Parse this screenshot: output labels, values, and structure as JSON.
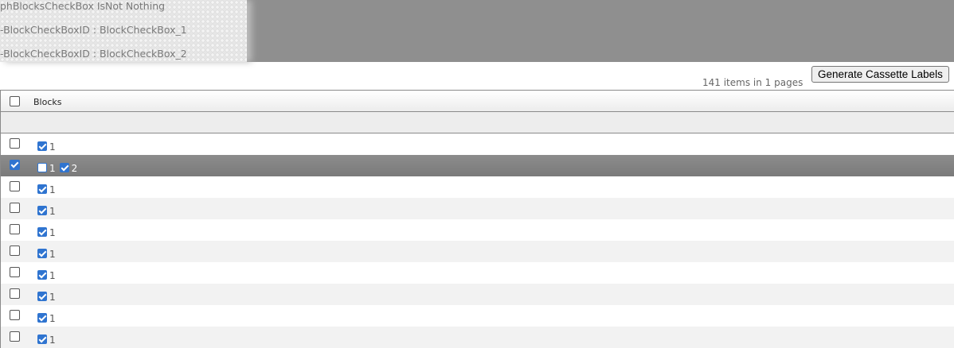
{
  "debug": {
    "lines": [
      "phBlocksCheckBox IsNot Nothing",
      "-BlockCheckBoxID : BlockCheckBox_1",
      "-BlockCheckBoxID : BlockCheckBox_2"
    ]
  },
  "toolbar": {
    "generate_label": "Generate Cassette Labels"
  },
  "pager": {
    "summary": "141 items in 1 pages"
  },
  "grid": {
    "header": {
      "blocks_label": "Blocks",
      "select_all": false
    },
    "rows": [
      {
        "selected": false,
        "blocks": [
          {
            "label": "1",
            "checked": true
          }
        ]
      },
      {
        "selected": true,
        "blocks": [
          {
            "label": "1",
            "checked": false
          },
          {
            "label": "2",
            "checked": true
          }
        ]
      },
      {
        "selected": false,
        "blocks": [
          {
            "label": "1",
            "checked": true
          }
        ]
      },
      {
        "selected": false,
        "blocks": [
          {
            "label": "1",
            "checked": true
          }
        ]
      },
      {
        "selected": false,
        "blocks": [
          {
            "label": "1",
            "checked": true
          }
        ]
      },
      {
        "selected": false,
        "blocks": [
          {
            "label": "1",
            "checked": true
          }
        ]
      },
      {
        "selected": false,
        "blocks": [
          {
            "label": "1",
            "checked": true
          }
        ]
      },
      {
        "selected": false,
        "blocks": [
          {
            "label": "1",
            "checked": true
          }
        ]
      },
      {
        "selected": false,
        "blocks": [
          {
            "label": "1",
            "checked": true
          }
        ]
      },
      {
        "selected": false,
        "blocks": [
          {
            "label": "1",
            "checked": true
          }
        ]
      }
    ]
  },
  "colors": {
    "accent": "#2f74d0",
    "selected_row": "#808080",
    "banner": "#8f8f8f"
  }
}
